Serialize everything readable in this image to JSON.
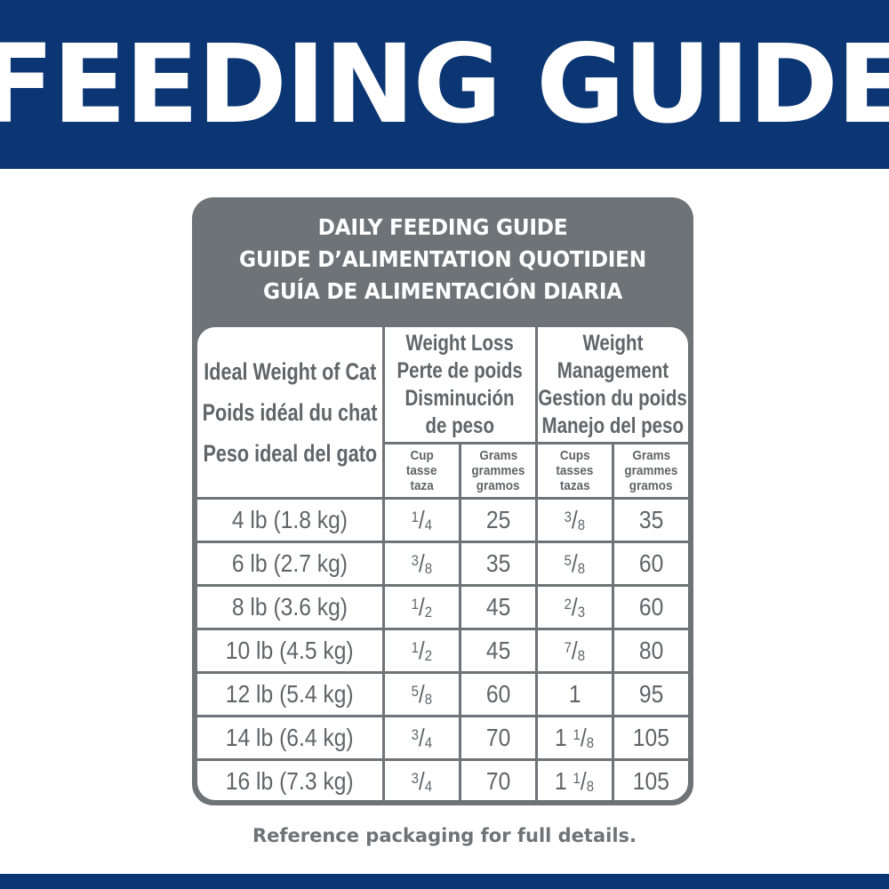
{
  "banner": {
    "title": "FEEDING GUIDE"
  },
  "colors": {
    "navy": "#0c3673",
    "gray": "#6d7376"
  },
  "panel": {
    "title_lines": [
      "DAILY FEEDING GUIDE",
      "GUIDE D’ALIMENTATION QUOTIDIEN",
      "GUÍA DE ALIMENTACIÓN DIARIA"
    ]
  },
  "table": {
    "weight_header": [
      "Ideal Weight of Cat",
      "Poids idéal du chat",
      "Peso ideal del gato"
    ],
    "groups": [
      {
        "lines": [
          "Weight Loss",
          "Perte de poids",
          "Disminución",
          "de peso"
        ]
      },
      {
        "lines": [
          "Weight",
          "Management",
          "Gestion du poids",
          "Manejo del peso"
        ]
      }
    ],
    "subheaders": [
      [
        "Cup",
        "tasse",
        "taza"
      ],
      [
        "Grams",
        "grammes",
        "gramos"
      ],
      [
        "Cups",
        "tasses",
        "tazas"
      ],
      [
        "Grams",
        "grammes",
        "gramos"
      ]
    ],
    "rows": [
      {
        "weight": "4 lb (1.8 kg)",
        "wl_cup": "1/4",
        "wl_g": "25",
        "wm_cup": "3/8",
        "wm_g": "35"
      },
      {
        "weight": "6 lb (2.7 kg)",
        "wl_cup": "3/8",
        "wl_g": "35",
        "wm_cup": "5/8",
        "wm_g": "60"
      },
      {
        "weight": "8 lb (3.6 kg)",
        "wl_cup": "1/2",
        "wl_g": "45",
        "wm_cup": "2/3",
        "wm_g": "60"
      },
      {
        "weight": "10 lb (4.5 kg)",
        "wl_cup": "1/2",
        "wl_g": "45",
        "wm_cup": "7/8",
        "wm_g": "80"
      },
      {
        "weight": "12 lb (5.4 kg)",
        "wl_cup": "5/8",
        "wl_g": "60",
        "wm_cup": "1",
        "wm_g": "95"
      },
      {
        "weight": "14 lb (6.4 kg)",
        "wl_cup": "3/4",
        "wl_g": "70",
        "wm_cup": "1 1/8",
        "wm_g": "105"
      },
      {
        "weight": "16 lb (7.3 kg)",
        "wl_cup": "3/4",
        "wl_g": "70",
        "wm_cup": "1 1/8",
        "wm_g": "105"
      }
    ]
  },
  "footer": {
    "note": "Reference packaging for full details."
  }
}
